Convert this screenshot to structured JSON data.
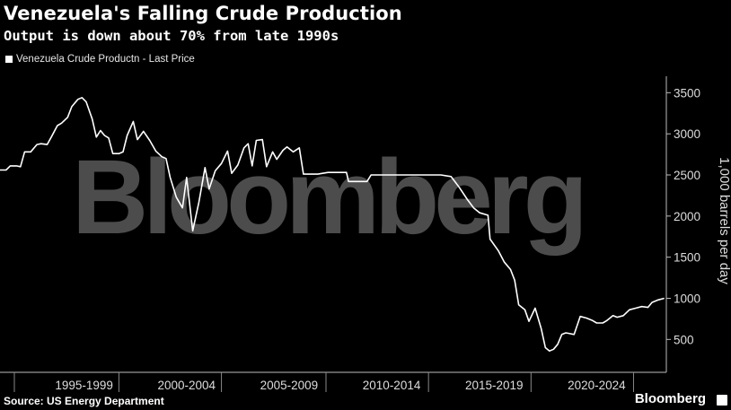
{
  "chart_data": {
    "type": "line",
    "title": "Venezuela's Falling Crude Production",
    "subtitle": "Output is down about 70% from late 1990s",
    "legend": "Venezuela Crude Productn - Last Price",
    "legend_placement": "top-left",
    "ylabel": "1,000 barrels per day",
    "ylim": [
      100,
      3700
    ],
    "yticks": [
      500,
      1000,
      1500,
      2000,
      2500,
      3000,
      3500
    ],
    "xlim": [
      1993.0,
      2025.5
    ],
    "xticks": [
      {
        "label": "1995-1999",
        "pos": 1997.1
      },
      {
        "label": "2000-2004",
        "pos": 2002.1
      },
      {
        "label": "2005-2009",
        "pos": 2007.1
      },
      {
        "label": "2010-2014",
        "pos": 2012.1
      },
      {
        "label": "2015-2019",
        "pos": 2017.1
      },
      {
        "label": "2020-2024",
        "pos": 2022.1
      }
    ],
    "xdividers": [
      1993.7,
      1998.8,
      2003.8,
      2008.9,
      2013.9,
      2018.9,
      2023.9
    ],
    "grid": false,
    "series": [
      {
        "name": "Venezuela Crude Productn - Last Price",
        "color": "#ffffff",
        "points": [
          [
            1993.0,
            2560
          ],
          [
            1993.3,
            2560
          ],
          [
            1993.5,
            2610
          ],
          [
            1993.8,
            2610
          ],
          [
            1994.0,
            2600
          ],
          [
            1994.2,
            2780
          ],
          [
            1994.5,
            2780
          ],
          [
            1994.8,
            2870
          ],
          [
            1995.0,
            2880
          ],
          [
            1995.3,
            2870
          ],
          [
            1995.5,
            2960
          ],
          [
            1995.8,
            3100
          ],
          [
            1996.0,
            3130
          ],
          [
            1996.3,
            3200
          ],
          [
            1996.5,
            3330
          ],
          [
            1996.8,
            3420
          ],
          [
            1997.0,
            3440
          ],
          [
            1997.2,
            3390
          ],
          [
            1997.5,
            3180
          ],
          [
            1997.7,
            2960
          ],
          [
            1997.9,
            3040
          ],
          [
            1998.1,
            2980
          ],
          [
            1998.3,
            2950
          ],
          [
            1998.5,
            2760
          ],
          [
            1998.8,
            2760
          ],
          [
            1999.0,
            2780
          ],
          [
            1999.2,
            2980
          ],
          [
            1999.5,
            3150
          ],
          [
            1999.7,
            2930
          ],
          [
            2000.0,
            3030
          ],
          [
            2000.3,
            2920
          ],
          [
            2000.6,
            2790
          ],
          [
            2000.9,
            2720
          ],
          [
            2001.1,
            2700
          ],
          [
            2001.3,
            2470
          ],
          [
            2001.6,
            2230
          ],
          [
            2001.9,
            2100
          ],
          [
            2002.1,
            2470
          ],
          [
            2002.4,
            1820
          ],
          [
            2002.7,
            2170
          ],
          [
            2003.0,
            2590
          ],
          [
            2003.2,
            2330
          ],
          [
            2003.5,
            2550
          ],
          [
            2003.8,
            2640
          ],
          [
            2004.1,
            2790
          ],
          [
            2004.3,
            2520
          ],
          [
            2004.6,
            2620
          ],
          [
            2004.9,
            2830
          ],
          [
            2005.1,
            2880
          ],
          [
            2005.3,
            2610
          ],
          [
            2005.5,
            2920
          ],
          [
            2005.8,
            2930
          ],
          [
            2006.0,
            2600
          ],
          [
            2006.3,
            2780
          ],
          [
            2006.5,
            2690
          ],
          [
            2006.8,
            2800
          ],
          [
            2007.0,
            2840
          ],
          [
            2007.3,
            2780
          ],
          [
            2007.6,
            2830
          ],
          [
            2007.8,
            2510
          ],
          [
            2008.1,
            2510
          ],
          [
            2008.5,
            2510
          ],
          [
            2009.0,
            2530
          ],
          [
            2009.5,
            2530
          ],
          [
            2009.9,
            2530
          ],
          [
            2010.0,
            2420
          ],
          [
            2010.5,
            2420
          ],
          [
            2010.9,
            2420
          ],
          [
            2011.1,
            2500
          ],
          [
            2011.5,
            2500
          ],
          [
            2012.0,
            2500
          ],
          [
            2012.5,
            2500
          ],
          [
            2013.0,
            2500
          ],
          [
            2013.5,
            2500
          ],
          [
            2014.0,
            2500
          ],
          [
            2014.5,
            2500
          ],
          [
            2015.0,
            2480
          ],
          [
            2015.4,
            2350
          ],
          [
            2015.8,
            2200
          ],
          [
            2016.1,
            2100
          ],
          [
            2016.4,
            2040
          ],
          [
            2016.8,
            2010
          ],
          [
            2016.9,
            1720
          ],
          [
            2017.3,
            1580
          ],
          [
            2017.6,
            1440
          ],
          [
            2017.9,
            1350
          ],
          [
            2018.1,
            1220
          ],
          [
            2018.3,
            920
          ],
          [
            2018.6,
            860
          ],
          [
            2018.8,
            720
          ],
          [
            2019.1,
            880
          ],
          [
            2019.4,
            630
          ],
          [
            2019.6,
            400
          ],
          [
            2019.8,
            360
          ],
          [
            2020.0,
            380
          ],
          [
            2020.2,
            440
          ],
          [
            2020.4,
            560
          ],
          [
            2020.6,
            580
          ],
          [
            2020.8,
            570
          ],
          [
            2021.0,
            560
          ],
          [
            2021.3,
            780
          ],
          [
            2021.6,
            760
          ],
          [
            2021.9,
            730
          ],
          [
            2022.1,
            700
          ],
          [
            2022.4,
            700
          ],
          [
            2022.6,
            730
          ],
          [
            2022.9,
            790
          ],
          [
            2023.1,
            770
          ],
          [
            2023.4,
            790
          ],
          [
            2023.7,
            860
          ],
          [
            2024.0,
            880
          ],
          [
            2024.3,
            900
          ],
          [
            2024.6,
            890
          ],
          [
            2024.8,
            950
          ],
          [
            2025.1,
            980
          ],
          [
            2025.4,
            1000
          ]
        ]
      }
    ]
  },
  "footer": {
    "source": "Source: US Energy Department",
    "brand": "Bloomberg"
  },
  "watermark": "Bloomberg"
}
